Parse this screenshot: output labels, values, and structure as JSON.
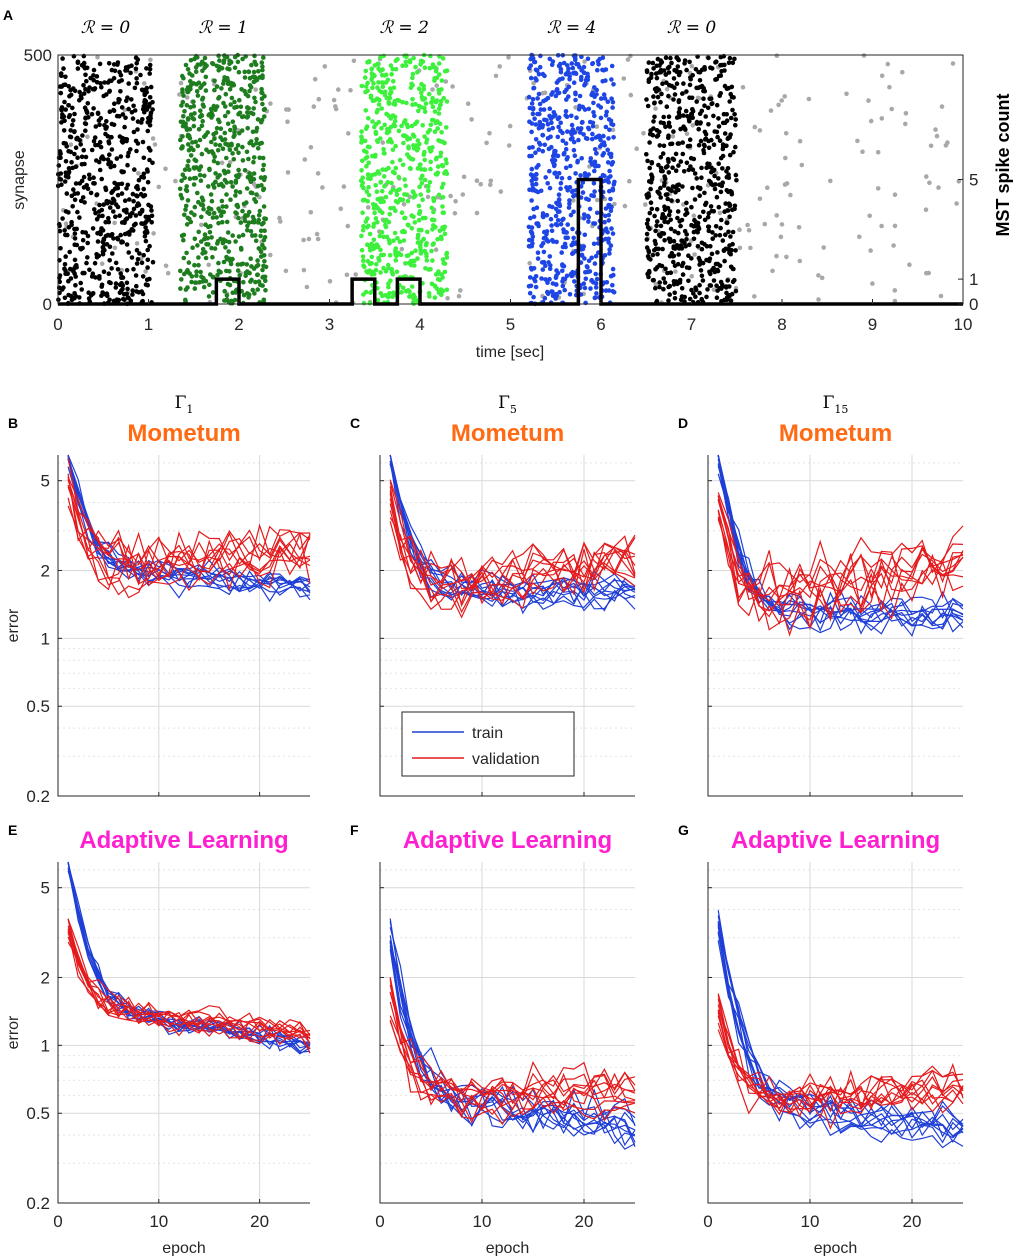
{
  "chart_data": [
    {
      "panel": "A",
      "type": "scatter",
      "xlabel": "time [sec]",
      "ylabel": "synapse",
      "ylabel_right": "MST spike count",
      "xlim": [
        0,
        10
      ],
      "ylim": [
        0,
        500
      ],
      "xticks": [
        "0",
        "1",
        "2",
        "3",
        "4",
        "5",
        "6",
        "7",
        "8",
        "9",
        "10"
      ],
      "yticks": [
        "0",
        "500"
      ],
      "right_ticks": [
        "0",
        "1",
        "5"
      ],
      "right_ylim": [
        0,
        10
      ],
      "events": [
        {
          "label": "ℛ = 0",
          "start": 0.0,
          "end": 1.05,
          "color": "#000000"
        },
        {
          "label": "ℛ = 1",
          "start": 1.35,
          "end": 2.3,
          "color": "#1e7d1e"
        },
        {
          "label": "ℛ = 2",
          "start": 3.35,
          "end": 4.3,
          "color": "#3cf03c"
        },
        {
          "label": "ℛ = 4",
          "start": 5.2,
          "end": 6.15,
          "color": "#1e46e6"
        },
        {
          "label": "ℛ = 0",
          "start": 6.5,
          "end": 7.5,
          "color": "#000000"
        }
      ],
      "background_color": "#a8a8a8",
      "spike_count": [
        {
          "start": 1.75,
          "end": 2.0,
          "count": 1
        },
        {
          "start": 3.25,
          "end": 3.5,
          "count": 1
        },
        {
          "start": 3.75,
          "end": 4.0,
          "count": 1
        },
        {
          "start": 5.75,
          "end": 6.0,
          "count": 5
        }
      ]
    },
    {
      "panel": "B",
      "gamma": "Γ",
      "gamma_sub": "1",
      "title": "Mometum",
      "type": "line",
      "ylabel": "error",
      "xlim": [
        0,
        25
      ],
      "ylim": [
        0.2,
        6.5
      ],
      "yscale": "log",
      "yticks": [
        "0.2",
        "0.5",
        "1",
        "2",
        "5"
      ],
      "xticks": [],
      "series": [
        {
          "name": "train",
          "color": "#1f3fd6",
          "start": 6.5,
          "plateau": 2.0,
          "end": 1.65,
          "spread": 0.15
        },
        {
          "name": "validation",
          "color": "#e41a1c",
          "start": 4.8,
          "plateau": 2.0,
          "end": 2.5,
          "spread": 0.3
        }
      ]
    },
    {
      "panel": "C",
      "gamma": "Γ",
      "gamma_sub": "5",
      "title": "Mometum",
      "type": "line",
      "xlim": [
        0,
        25
      ],
      "ylim": [
        0.2,
        6.5
      ],
      "yscale": "log",
      "legend": [
        "train",
        "validation"
      ],
      "legend_position": "lower-left",
      "series": [
        {
          "name": "train",
          "color": "#1f3fd6",
          "start": 6.5,
          "plateau": 1.65,
          "end": 1.6,
          "spread": 0.18
        },
        {
          "name": "validation",
          "color": "#e41a1c",
          "start": 4.3,
          "plateau": 1.6,
          "end": 2.3,
          "spread": 0.32
        }
      ]
    },
    {
      "panel": "D",
      "gamma": "Γ",
      "gamma_sub": "15",
      "title": "Mometum",
      "type": "line",
      "xlim": [
        0,
        25
      ],
      "ylim": [
        0.2,
        6.5
      ],
      "yscale": "log",
      "series": [
        {
          "name": "train",
          "color": "#1f3fd6",
          "start": 6.5,
          "plateau": 1.35,
          "end": 1.35,
          "spread": 0.2
        },
        {
          "name": "validation",
          "color": "#e41a1c",
          "start": 4.3,
          "plateau": 1.4,
          "end": 2.2,
          "spread": 0.35
        }
      ]
    },
    {
      "panel": "E",
      "title": "Adaptive Learning",
      "type": "line",
      "ylabel": "error",
      "xlabel": "epoch",
      "xlim": [
        0,
        25
      ],
      "ylim": [
        0.2,
        6.5
      ],
      "yscale": "log",
      "xticks": [
        "0",
        "10",
        "20"
      ],
      "yticks": [
        "0.2",
        "0.5",
        "1",
        "2",
        "5"
      ],
      "series": [
        {
          "name": "train",
          "color": "#1f3fd6",
          "start": 6.5,
          "plateau": 1.4,
          "end": 1.0,
          "spread": 0.12
        },
        {
          "name": "validation",
          "color": "#e41a1c",
          "start": 3.3,
          "plateau": 1.4,
          "end": 1.1,
          "spread": 0.15
        }
      ]
    },
    {
      "panel": "F",
      "title": "Adaptive Learning",
      "type": "line",
      "xlabel": "epoch",
      "xlim": [
        0,
        25
      ],
      "ylim": [
        0.2,
        6.5
      ],
      "yscale": "log",
      "xticks": [
        "0",
        "10",
        "20"
      ],
      "series": [
        {
          "name": "train",
          "color": "#1f3fd6",
          "start": 3.0,
          "plateau": 0.6,
          "end": 0.45,
          "spread": 0.22
        },
        {
          "name": "validation",
          "color": "#e41a1c",
          "start": 1.6,
          "plateau": 0.6,
          "end": 0.62,
          "spread": 0.25
        }
      ]
    },
    {
      "panel": "G",
      "title": "Adaptive Learning",
      "type": "line",
      "xlabel": "epoch",
      "xlim": [
        0,
        25
      ],
      "ylim": [
        0.2,
        6.5
      ],
      "yscale": "log",
      "xticks": [
        "0",
        "10",
        "20"
      ],
      "series": [
        {
          "name": "train",
          "color": "#1f3fd6",
          "start": 3.5,
          "plateau": 0.55,
          "end": 0.42,
          "spread": 0.2
        },
        {
          "name": "validation",
          "color": "#e41a1c",
          "start": 1.5,
          "plateau": 0.55,
          "end": 0.65,
          "spread": 0.25
        }
      ]
    }
  ]
}
